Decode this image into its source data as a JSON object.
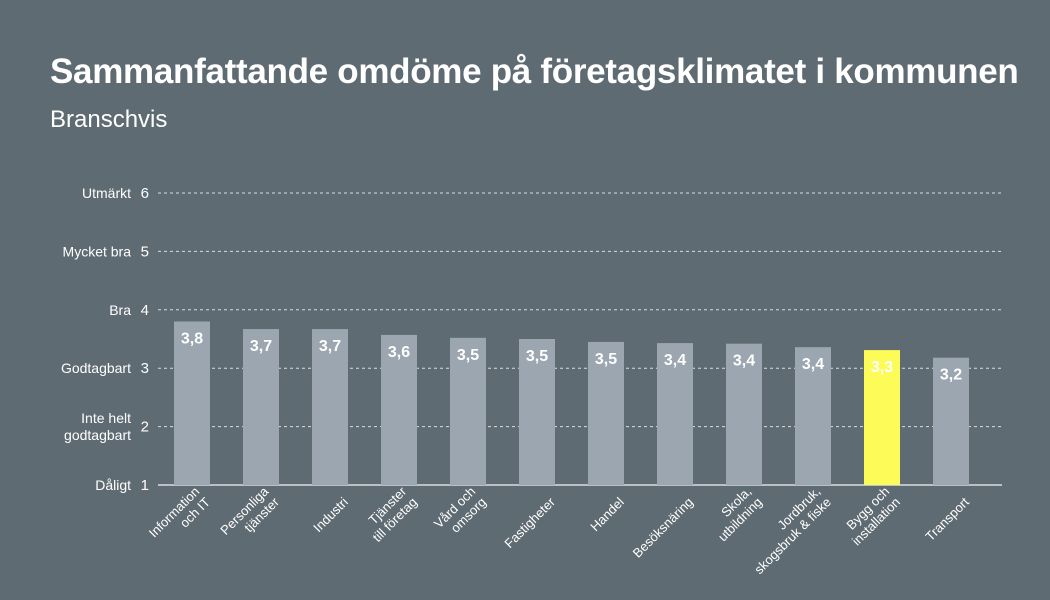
{
  "colors": {
    "background": "#5f6b72",
    "bar": "#9ba6b1",
    "highlight_bar": "#fcfb58",
    "grid": "#d8dde0",
    "text": "#ffffff"
  },
  "chart_data": {
    "type": "bar",
    "title": "Sammanfattande omdöme på företagsklimatet i kommunen",
    "subtitle": "Branschvis",
    "xlabel": "",
    "ylabel": "",
    "ylim": [
      1,
      6
    ],
    "grid": true,
    "y_ticks": [
      {
        "value": 1,
        "label": [
          "Dåligt"
        ]
      },
      {
        "value": 2,
        "label": [
          "Inte helt",
          "godtagbart"
        ]
      },
      {
        "value": 3,
        "label": [
          "Godtagbart"
        ]
      },
      {
        "value": 4,
        "label": [
          "Bra"
        ]
      },
      {
        "value": 5,
        "label": [
          "Mycket bra"
        ]
      },
      {
        "value": 6,
        "label": [
          "Utmärkt"
        ]
      }
    ],
    "categories": [
      [
        "Information",
        "och IT"
      ],
      [
        "Personliga",
        "tjänster"
      ],
      [
        "Industri"
      ],
      [
        "Tjänster",
        "till företag"
      ],
      [
        "Vård och",
        "omsorg"
      ],
      [
        "Fastigheter"
      ],
      [
        "Handel"
      ],
      [
        "Besöksnäring"
      ],
      [
        "Skola,",
        "utbildning"
      ],
      [
        "Jordbruk,",
        "skogsbruk & fiske"
      ],
      [
        "Bygg och",
        "installation"
      ],
      [
        "Transport"
      ]
    ],
    "values": [
      3.8,
      3.67,
      3.67,
      3.57,
      3.52,
      3.5,
      3.45,
      3.43,
      3.42,
      3.36,
      3.31,
      3.18
    ],
    "data_labels": [
      "3,8",
      "3,7",
      "3,7",
      "3,6",
      "3,5",
      "3,5",
      "3,5",
      "3,4",
      "3,4",
      "3,4",
      "3,3",
      "3,2"
    ],
    "highlight_index": 10
  }
}
